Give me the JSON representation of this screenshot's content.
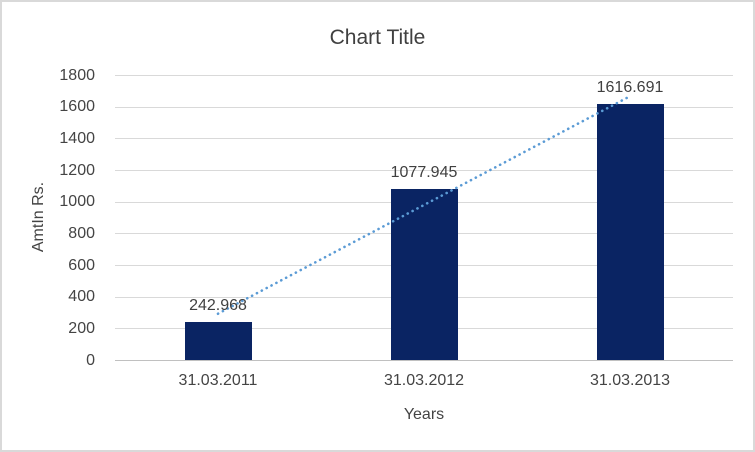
{
  "chart_data": {
    "type": "bar",
    "title": "Chart Title",
    "categories": [
      "31.03.2011",
      "31.03.2012",
      "31.03.2013"
    ],
    "values": [
      242.968,
      1077.945,
      1616.691
    ],
    "data_labels": [
      "242.968",
      "1077.945",
      "1616.691"
    ],
    "xlabel": "Years",
    "ylabel": "AmtIn Rs.",
    "ylim": [
      0,
      1800
    ],
    "ytick_step": 200,
    "yticks": [
      0,
      200,
      400,
      600,
      800,
      1000,
      1200,
      1400,
      1600,
      1800
    ],
    "grid": true,
    "legend": "none",
    "trendline": {
      "type": "linear",
      "style": "dotted",
      "color": "#5b9bd5"
    },
    "colors": {
      "bar_fill": "#0a2463",
      "gridline": "#d9d9d9",
      "axis_line": "#c0c0c0",
      "text": "#404040",
      "border": "#d9d9d9",
      "background": "#ffffff"
    }
  }
}
